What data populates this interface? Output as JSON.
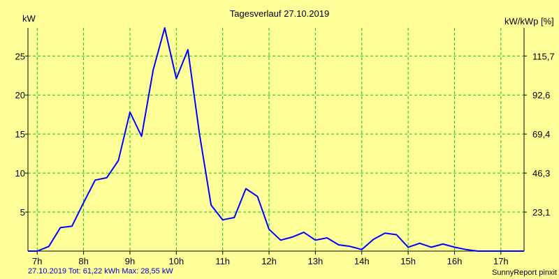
{
  "chart_data": {
    "type": "line",
    "title": "Tagesverlauf 27.10.2019",
    "ylabel_left": "kW",
    "ylabel_right": "kW/kWp [%]",
    "x_ticks": [
      "7h",
      "8h",
      "9h",
      "10h",
      "11h",
      "12h",
      "13h",
      "14h",
      "15h",
      "16h",
      "17h"
    ],
    "y_ticks_left": [
      "5",
      "10",
      "15",
      "20",
      "25"
    ],
    "y_ticks_right": [
      "23,1",
      "46,3",
      "69,4",
      "92,6",
      "115,7"
    ],
    "xlim": [
      6.8,
      17.5
    ],
    "ylim": [
      0,
      28.6
    ],
    "grid": true,
    "colors": {
      "background": "#ffff99",
      "plot_bg": "#ffff99",
      "grid": "#00cc00",
      "line": "#0000ff",
      "axis": "#000000"
    },
    "series": [
      {
        "x": [
          6.8,
          7.0,
          7.25,
          7.5,
          7.75,
          8.0,
          8.25,
          8.5,
          8.75,
          9.0,
          9.25,
          9.5,
          9.75,
          10.0,
          10.25,
          10.5,
          10.75,
          11.0,
          11.25,
          11.5,
          11.75,
          12.0,
          12.25,
          12.5,
          12.75,
          13.0,
          13.25,
          13.5,
          13.75,
          14.0,
          14.25,
          14.5,
          14.75,
          15.0,
          15.25,
          15.5,
          15.75,
          16.0,
          16.25,
          16.5,
          16.75,
          17.0,
          17.25,
          17.5
        ],
        "y": [
          0.0,
          0.0,
          0.6,
          3.0,
          3.2,
          6.2,
          9.1,
          9.4,
          11.6,
          17.8,
          14.7,
          23.2,
          28.6,
          22.1,
          25.8,
          15.0,
          5.9,
          4.0,
          4.3,
          8.0,
          7.0,
          2.8,
          1.4,
          1.8,
          2.4,
          1.4,
          1.7,
          0.8,
          0.6,
          0.2,
          1.5,
          2.3,
          2.1,
          0.5,
          1.0,
          0.5,
          0.9,
          0.5,
          0.2,
          0.0,
          0.0,
          0.0,
          0.0,
          0.0
        ]
      }
    ]
  },
  "footer": {
    "summary": "27.10.2019 Tot: 61,22 kWh Max: 28,55 kW",
    "brand": "SunnyReport pinxit"
  }
}
